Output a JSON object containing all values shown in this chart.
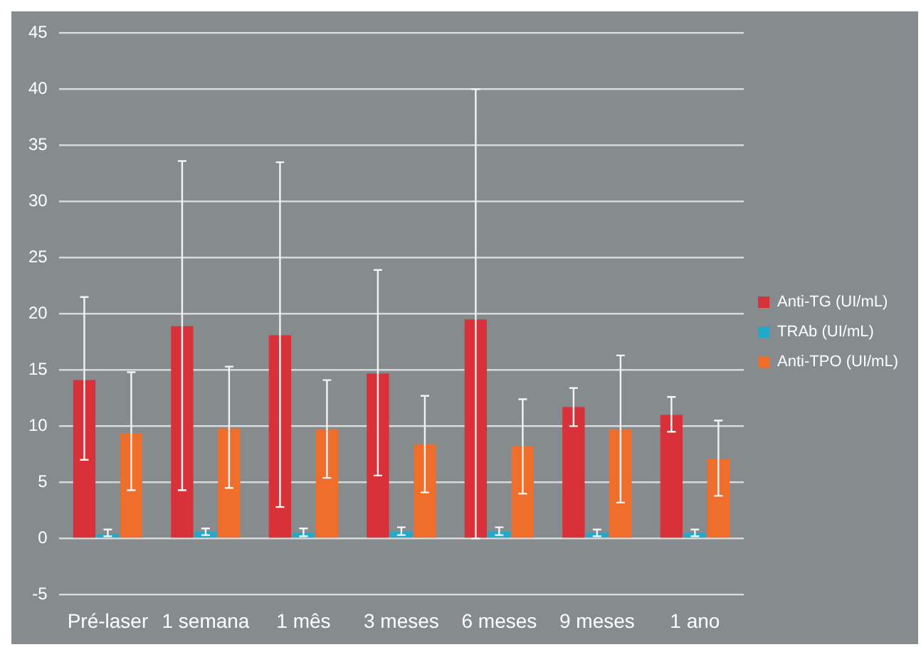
{
  "chart_data": {
    "type": "bar",
    "categories": [
      "Pré-laser",
      "1 semana",
      "1 mês",
      "3 meses",
      "6 meses",
      "9 meses",
      "1 ano"
    ],
    "series": [
      {
        "name": "Anti-TG (UI/mL)",
        "color": "#d8313a",
        "values": [
          14.1,
          18.9,
          18.1,
          14.7,
          19.5,
          11.7,
          11.0
        ],
        "errors": [
          [
            7.0,
            21.5
          ],
          [
            4.3,
            33.6
          ],
          [
            2.8,
            33.5
          ],
          [
            5.6,
            23.9
          ],
          [
            0,
            40
          ],
          [
            10.0,
            13.4
          ],
          [
            9.5,
            12.6
          ]
        ]
      },
      {
        "name": "TRAb (UI/mL)",
        "color": "#22a9c9",
        "values": [
          0.4,
          0.6,
          0.5,
          0.6,
          0.6,
          0.5,
          0.5
        ],
        "errors": [
          [
            0.2,
            0.8
          ],
          [
            0.3,
            0.9
          ],
          [
            0.2,
            0.9
          ],
          [
            0.3,
            1.0
          ],
          [
            0.3,
            1.0
          ],
          [
            0.2,
            0.8
          ],
          [
            0.2,
            0.8
          ]
        ]
      },
      {
        "name": "Anti-TPO (UI/mL)",
        "color": "#ef6e2c",
        "values": [
          9.4,
          9.8,
          9.7,
          8.4,
          8.2,
          9.7,
          7.1
        ],
        "errors": [
          [
            4.3,
            14.8
          ],
          [
            4.5,
            15.3
          ],
          [
            5.4,
            14.1
          ],
          [
            4.1,
            12.7
          ],
          [
            4.0,
            12.4
          ],
          [
            3.2,
            16.3
          ],
          [
            3.8,
            10.5
          ]
        ]
      }
    ],
    "ylim": [
      -5,
      45
    ],
    "yticks": [
      -5,
      0,
      5,
      10,
      15,
      20,
      25,
      30,
      35,
      40,
      45
    ],
    "grid": "y",
    "legend": "right"
  }
}
